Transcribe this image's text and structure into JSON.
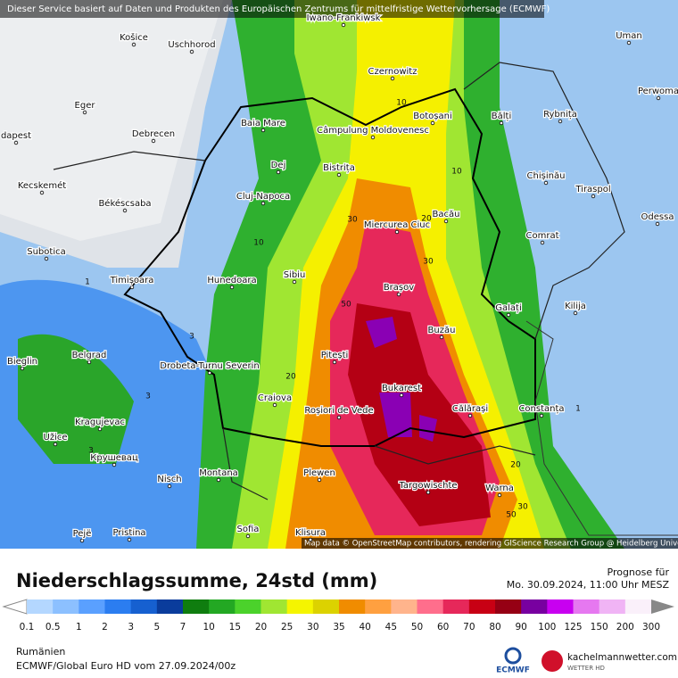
{
  "header": {
    "notice": "Dieser Service basiert auf Daten und Produkten des Europäischen Zentrums für mittelfristige Wettervorhersage (ECMWF)"
  },
  "map": {
    "cities": [
      "Iwano-Frankiwsk",
      "Košice",
      "Uschhorod",
      "Uman",
      "Czernowitz",
      "Perwoma",
      "Eger",
      "Baia Mare",
      "Bălți",
      "Rybnița",
      "Botoșani",
      "Câmpulung Moldovenesc",
      "dapest",
      "Debrecen",
      "Dej",
      "Bistrița",
      "Chișinău",
      "Tiraspol",
      "Kecskemét",
      "Cluj-Napoca",
      "Békéscsaba",
      "Bacău",
      "Miercurea Ciuc",
      "Odessa",
      "Comrat",
      "Subotica",
      "Sibiu",
      "Hunedoara",
      "Timișoara",
      "Brașov",
      "Galați",
      "Kilija",
      "Buzău",
      "Bieglin",
      "Belgrad",
      "Drobeta-Turnu Severin",
      "Pitești",
      "Bukarest",
      "Craiova",
      "Roșiori de Vede",
      "Călărași",
      "Constanța",
      "Kragujevac",
      "Užice",
      "Крушевац",
      "Nisch",
      "Plewen",
      "Montana",
      "Targowischte",
      "Warna",
      "Sofia",
      "Pristina",
      "Pejë",
      "Klisura"
    ],
    "contour_labels": [
      "10",
      "10",
      "10",
      "20",
      "20",
      "20",
      "30",
      "30",
      "30",
      "50",
      "50",
      "1",
      "1",
      "3",
      "3",
      "3"
    ],
    "attribution": "Map data © OpenStreetMap contributors, rendering GIScience Research Group @ Heidelberg University"
  },
  "panel": {
    "title": "Niederschlagssumme, 24std (mm)",
    "forecast_label": "Prognose für",
    "forecast_time": "Mo. 30.09.2024, 11:00 Uhr MESZ",
    "legend": {
      "labels": [
        "0.1",
        "0.5",
        "1",
        "2",
        "3",
        "5",
        "7",
        "10",
        "15",
        "20",
        "25",
        "30",
        "35",
        "40",
        "45",
        "50",
        "60",
        "70",
        "80",
        "90",
        "100",
        "125",
        "150",
        "200",
        "300"
      ],
      "colors": [
        "#b4d7ff",
        "#8cc0ff",
        "#5aa0ff",
        "#2b7df0",
        "#1660d0",
        "#0a3c9c",
        "#0f7d0f",
        "#23a823",
        "#4bd22b",
        "#a0e632",
        "#f5f500",
        "#dcd200",
        "#f08c00",
        "#ffa040",
        "#ffb48c",
        "#ff6e8c",
        "#e6285a",
        "#c80014",
        "#960014",
        "#7800a0",
        "#c800f0",
        "#e678f0",
        "#f0b4f5",
        "#faf0fa"
      ]
    },
    "region": "Rumänien",
    "model": "ECMWF/Global Euro HD vom  27.09.2024/00z",
    "ecmwf_logo": "ECMWF",
    "site": "kachelmannwetter.com",
    "site_sub": "WETTER HD"
  }
}
